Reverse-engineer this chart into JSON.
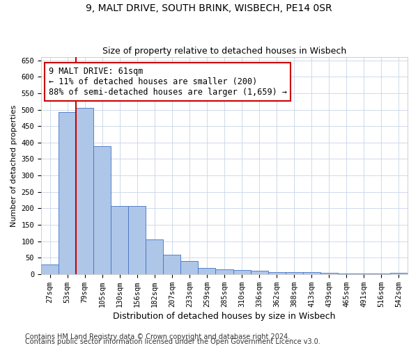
{
  "title1": "9, MALT DRIVE, SOUTH BRINK, WISBECH, PE14 0SR",
  "title2": "Size of property relative to detached houses in Wisbech",
  "xlabel": "Distribution of detached houses by size in Wisbech",
  "ylabel": "Number of detached properties",
  "footnote1": "Contains HM Land Registry data © Crown copyright and database right 2024.",
  "footnote2": "Contains public sector information licensed under the Open Government Licence v3.0.",
  "categories": [
    "27sqm",
    "53sqm",
    "79sqm",
    "105sqm",
    "130sqm",
    "156sqm",
    "182sqm",
    "207sqm",
    "233sqm",
    "259sqm",
    "285sqm",
    "310sqm",
    "336sqm",
    "362sqm",
    "388sqm",
    "413sqm",
    "439sqm",
    "465sqm",
    "491sqm",
    "516sqm",
    "542sqm"
  ],
  "values": [
    30,
    492,
    505,
    390,
    208,
    208,
    106,
    58,
    40,
    18,
    14,
    12,
    11,
    5,
    5,
    5,
    3,
    1,
    1,
    1,
    4
  ],
  "bar_color": "#aec6e8",
  "bar_edge_color": "#4472c4",
  "vline_color": "#cc0000",
  "vline_xindex": 1,
  "annotation_text": "9 MALT DRIVE: 61sqm\n← 11% of detached houses are smaller (200)\n88% of semi-detached houses are larger (1,659) →",
  "annotation_box_color": "#ffffff",
  "annotation_box_edge": "#cc0000",
  "ylim": [
    0,
    660
  ],
  "yticks": [
    0,
    50,
    100,
    150,
    200,
    250,
    300,
    350,
    400,
    450,
    500,
    550,
    600,
    650
  ],
  "grid_color": "#c8d4e8",
  "background_color": "#ffffff",
  "title1_fontsize": 10,
  "title2_fontsize": 9,
  "xlabel_fontsize": 9,
  "ylabel_fontsize": 8,
  "tick_fontsize": 7.5,
  "annotation_fontsize": 8.5,
  "footnote_fontsize": 7
}
